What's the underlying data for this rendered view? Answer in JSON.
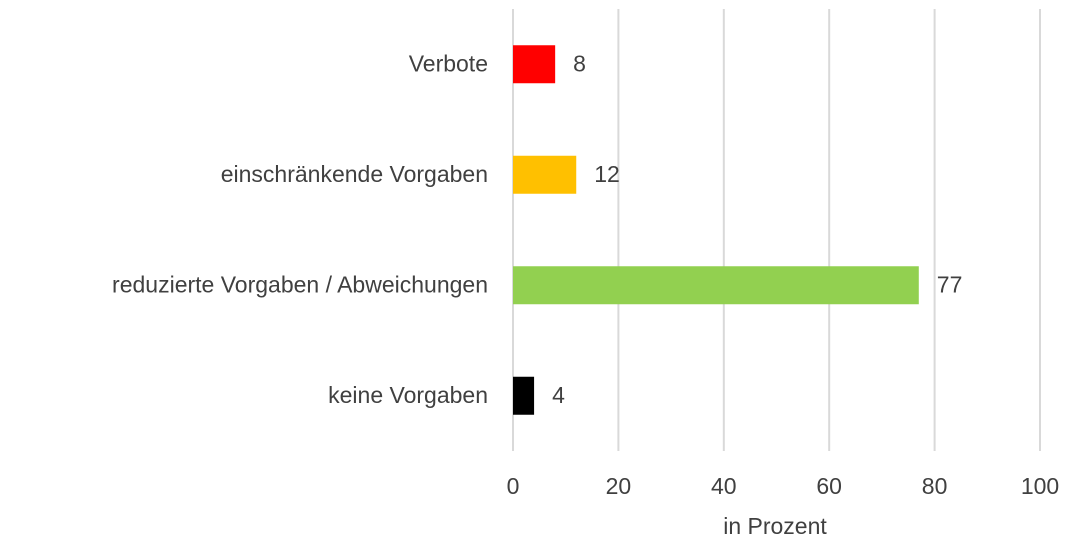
{
  "chart_data": {
    "type": "bar",
    "orientation": "horizontal",
    "categories": [
      "Verbote",
      "einschränkende Vorgaben",
      "reduzierte Vorgaben / Abweichungen",
      "keine Vorgaben"
    ],
    "values": [
      8,
      12,
      77,
      4
    ],
    "colors": [
      "#ff0000",
      "#ffc000",
      "#92d050",
      "#000000"
    ],
    "xlabel": "in Prozent",
    "xlim": [
      0,
      100
    ],
    "xticks": [
      0,
      20,
      40,
      60,
      80,
      100
    ],
    "grid": true
  }
}
